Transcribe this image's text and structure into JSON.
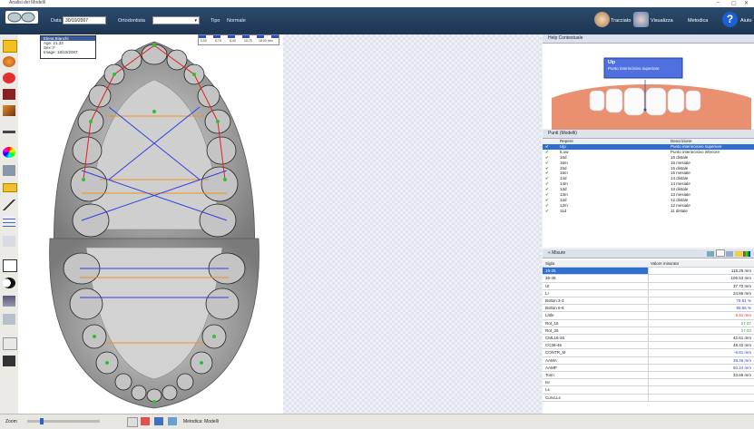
{
  "titlebar": {
    "title": "Analisi dei Modelli"
  },
  "toolbar": {
    "data_label": "Data",
    "data_value": "30/10/2007",
    "ortodontista_label": "Ortodontista",
    "tipo_label": "Tipo",
    "tipo_value": "Normale",
    "buttons": [
      "Tracciato",
      "Visualizza",
      "Metodica",
      "Aiuto"
    ],
    "colors": {
      "bar": "#24405e",
      "accent": "#2f6fd0"
    }
  },
  "patient": {
    "name": "Elena Bianchi",
    "age": "Age: 21,33",
    "sex": "Sex: F",
    "image": "Image: 18/10/2007"
  },
  "ruler": {
    "ticks": [
      "5.00",
      "6.75",
      "8.40",
      "10.75",
      "18.00 mm"
    ]
  },
  "help": {
    "header": "Help Contestuale",
    "callout_title": "Uip",
    "callout_sub": "Punto interincisivo superiore"
  },
  "punti": {
    "header": "Punti (Modelli)",
    "col1": "Repere",
    "col2": "Descrizione",
    "rows": [
      {
        "r": "Uip",
        "d": "Punto interincisivo superiore"
      },
      {
        "r": "ILow",
        "d": "Punto interincisivo inferiore"
      },
      {
        "r": "16d",
        "d": "16 distale"
      },
      {
        "r": "16m",
        "d": "16 mesiale"
      },
      {
        "r": "15d",
        "d": "15 distale"
      },
      {
        "r": "15m",
        "d": "15 mesiale"
      },
      {
        "r": "14d",
        "d": "14 distale"
      },
      {
        "r": "14m",
        "d": "14 mesiale"
      },
      {
        "r": "13d",
        "d": "13 distale"
      },
      {
        "r": "13m",
        "d": "13 mesiale"
      },
      {
        "r": "12d",
        "d": "12 distale"
      },
      {
        "r": "12m",
        "d": "12 mesiale"
      },
      {
        "r": "11d",
        "d": "11 distale"
      }
    ]
  },
  "misure": {
    "header": "Misure",
    "col1": "Sigla",
    "col2": "Valore misurato",
    "rows": [
      {
        "s": "16-26",
        "v": "115.25 mm",
        "c": "#222222"
      },
      {
        "s": "36-46",
        "v": "105.53 mm",
        "c": "#222222"
      },
      {
        "s": "UI",
        "v": "37.72 mm",
        "c": "#222222"
      },
      {
        "s": "LI",
        "v": "24.86 mm",
        "c": "#222222"
      },
      {
        "s": "Bolton 3-3",
        "v": "78.81 %",
        "c": "#3040d0"
      },
      {
        "s": "Bolton 6-6",
        "v": "95.56 %",
        "c": "#3040d0"
      },
      {
        "s": "Little",
        "v": "5.61 mm",
        "c": "#d03030"
      },
      {
        "s": "Rot_16",
        "v": "27.67",
        "c": "#30a030"
      },
      {
        "s": "Rot_26",
        "v": "27.53",
        "c": "#30a030"
      },
      {
        "s": "CML16-26",
        "v": "42.61 mm",
        "c": "#222222"
      },
      {
        "s": "CC36-46",
        "v": "48.42 mm",
        "c": "#222222"
      },
      {
        "s": "CONTR_M",
        "v": "-6.81 mm",
        "c": "#3040d0"
      },
      {
        "s": "AAMA",
        "v": "39.46 mm",
        "c": "#3040d0"
      },
      {
        "s": "AAMP",
        "v": "50.24 mm",
        "c": "#3040d0"
      },
      {
        "s": "Tonn",
        "v": "33.65 mm",
        "c": "#222222"
      },
      {
        "s": "Isr",
        "v": "",
        "c": "#222222"
      },
      {
        "s": "Ls",
        "v": "",
        "c": "#222222"
      },
      {
        "s": "CurvLLs",
        "v": "",
        "c": "#222222"
      }
    ]
  },
  "status": {
    "label": "Metodica: Modelli",
    "zoom_label": "Zoom"
  }
}
